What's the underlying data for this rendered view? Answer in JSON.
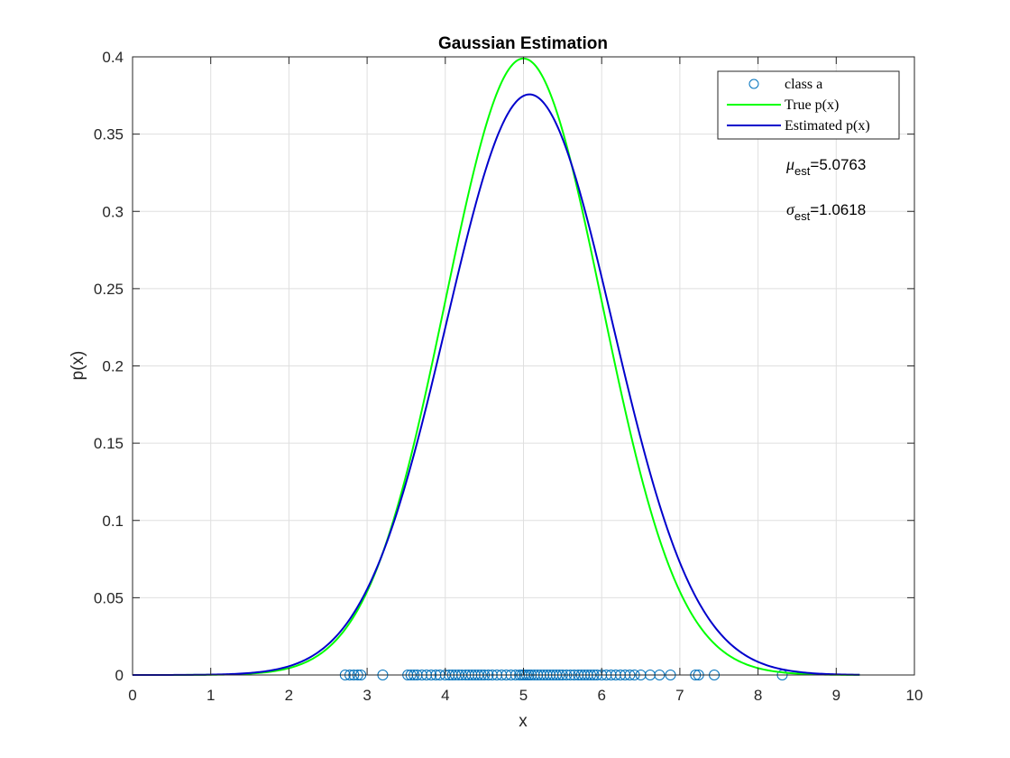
{
  "chart_data": {
    "type": "line",
    "title": "Gaussian Estimation",
    "xlabel": "x",
    "ylabel": "p(x)",
    "xlim": [
      0,
      10
    ],
    "ylim": [
      0,
      0.4
    ],
    "xticks": [
      "0",
      "1",
      "2",
      "3",
      "4",
      "5",
      "6",
      "7",
      "8",
      "9",
      "10"
    ],
    "yticks": [
      "0",
      "0.05",
      "0.1",
      "0.15",
      "0.2",
      "0.25",
      "0.3",
      "0.35",
      "0.4"
    ],
    "grid": true,
    "legend_position": "top-right",
    "series": [
      {
        "name": "class a",
        "kind": "scatter",
        "marker": "circle-open",
        "color": "#0072bd",
        "x": [
          2.72,
          2.78,
          2.83,
          2.88,
          2.92,
          3.2,
          3.52,
          3.56,
          3.6,
          3.64,
          3.7,
          3.76,
          3.82,
          3.88,
          3.93,
          4.0,
          4.05,
          4.09,
          4.13,
          4.17,
          4.21,
          4.26,
          4.3,
          4.34,
          4.38,
          4.42,
          4.46,
          4.5,
          4.55,
          4.6,
          4.66,
          4.72,
          4.78,
          4.84,
          4.9,
          4.95,
          4.98,
          5.01,
          5.04,
          5.07,
          5.1,
          5.14,
          5.18,
          5.22,
          5.26,
          5.3,
          5.34,
          5.38,
          5.42,
          5.46,
          5.5,
          5.55,
          5.6,
          5.65,
          5.7,
          5.74,
          5.78,
          5.82,
          5.86,
          5.9,
          5.94,
          6.0,
          6.06,
          6.12,
          6.18,
          6.24,
          6.3,
          6.36,
          6.42,
          6.5,
          6.62,
          6.74,
          6.88,
          7.2,
          7.24,
          7.44,
          8.31
        ],
        "y": [
          0,
          0,
          0,
          0,
          0,
          0,
          0,
          0,
          0,
          0,
          0,
          0,
          0,
          0,
          0,
          0,
          0,
          0,
          0,
          0,
          0,
          0,
          0,
          0,
          0,
          0,
          0,
          0,
          0,
          0,
          0,
          0,
          0,
          0,
          0,
          0,
          0,
          0,
          0,
          0,
          0,
          0,
          0,
          0,
          0,
          0,
          0,
          0,
          0,
          0,
          0,
          0,
          0,
          0,
          0,
          0,
          0,
          0,
          0,
          0,
          0,
          0,
          0,
          0,
          0,
          0,
          0,
          0,
          0,
          0,
          0,
          0,
          0,
          0,
          0,
          0,
          0
        ]
      },
      {
        "name": "True p(x)",
        "kind": "line",
        "color": "#00ff00",
        "mu": 5,
        "sigma": 1,
        "x_range": [
          0,
          9.3
        ]
      },
      {
        "name": "Estimated p(x)",
        "kind": "line",
        "color": "#0000cc",
        "mu": 5.0763,
        "sigma": 1.0618,
        "x_range": [
          0,
          9.3
        ]
      }
    ],
    "annotations": [
      {
        "symbol": "μ",
        "subscript": "est",
        "value": "=5.0763"
      },
      {
        "symbol": "σ",
        "subscript": "est",
        "value": "=1.0618"
      }
    ]
  }
}
